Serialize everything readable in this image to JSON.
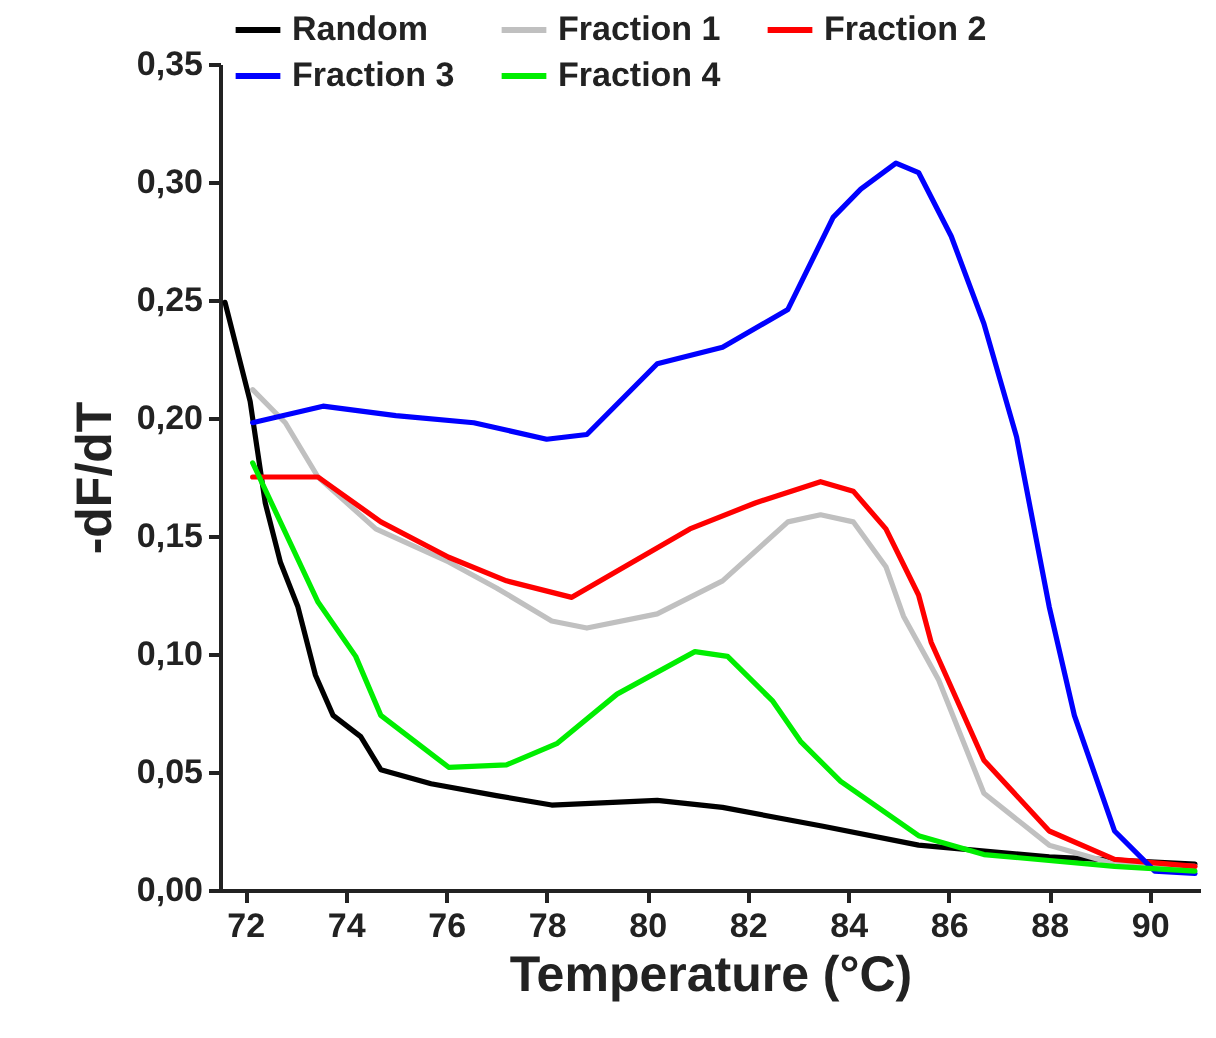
{
  "chart_data": {
    "type": "line",
    "xlabel": "Temperature (°C)",
    "ylabel": "-dF/dT",
    "xlim": [
      71.5,
      91
    ],
    "ylim": [
      0,
      0.35
    ],
    "xticks": [
      72,
      74,
      76,
      78,
      80,
      82,
      84,
      86,
      88,
      90
    ],
    "yticks": [
      {
        "value": 0,
        "label": "0,00"
      },
      {
        "value": 0.05,
        "label": "0,05"
      },
      {
        "value": 0.1,
        "label": "0,10"
      },
      {
        "value": 0.15,
        "label": "0,15"
      },
      {
        "value": 0.2,
        "label": "0,20"
      },
      {
        "value": 0.25,
        "label": "0,25"
      },
      {
        "value": 0.3,
        "label": "0,30"
      },
      {
        "value": 0.35,
        "label": "0,35"
      }
    ],
    "grid": false,
    "legend": "top left",
    "line_style": "solid",
    "series": [
      {
        "name": "Random",
        "color": "#000000",
        "x": [
          71.6,
          72.1,
          72.4,
          72.7,
          73.05,
          73.4,
          73.75,
          74.3,
          74.7,
          75.7,
          77,
          78.1,
          80.2,
          81.5,
          83.5,
          85.4,
          88,
          90.9
        ],
        "values": [
          0.249,
          0.207,
          0.164,
          0.139,
          0.12,
          0.091,
          0.074,
          0.065,
          0.051,
          0.045,
          0.04,
          0.036,
          0.038,
          0.035,
          0.027,
          0.019,
          0.014,
          0.011
        ]
      },
      {
        "name": "Fraction 1",
        "color": "#c0c0c0",
        "x": [
          72.15,
          72.8,
          73.45,
          74.6,
          76.05,
          77,
          78.1,
          78.8,
          80.2,
          81.5,
          82.8,
          83.45,
          84.1,
          84.75,
          85.1,
          85.8,
          86.7,
          88,
          89.3,
          90.9
        ],
        "values": [
          0.212,
          0.198,
          0.175,
          0.153,
          0.139,
          0.128,
          0.114,
          0.111,
          0.117,
          0.131,
          0.156,
          0.159,
          0.156,
          0.137,
          0.116,
          0.089,
          0.041,
          0.019,
          0.011,
          0.01
        ]
      },
      {
        "name": "Fraction 2",
        "color": "#ff0000",
        "x": [
          72.15,
          73.45,
          74.7,
          76.05,
          77.2,
          78.5,
          79.55,
          80.85,
          82.15,
          83.45,
          84.1,
          84.75,
          85.4,
          85.65,
          86.7,
          88,
          89.3,
          90.9
        ],
        "values": [
          0.175,
          0.175,
          0.156,
          0.141,
          0.131,
          0.124,
          0.137,
          0.153,
          0.164,
          0.173,
          0.169,
          0.153,
          0.125,
          0.105,
          0.055,
          0.025,
          0.013,
          0.01
        ]
      },
      {
        "name": "Fraction 3",
        "color": "#0000ff",
        "x": [
          72.15,
          73.55,
          75,
          76.55,
          78,
          78.8,
          80.2,
          81.5,
          82.8,
          83.7,
          84.25,
          84.95,
          85.4,
          86.05,
          86.7,
          87.35,
          88,
          88.5,
          89.3,
          90.1,
          90.9
        ],
        "values": [
          0.198,
          0.205,
          0.201,
          0.198,
          0.191,
          0.193,
          0.223,
          0.23,
          0.246,
          0.285,
          0.297,
          0.308,
          0.304,
          0.277,
          0.24,
          0.192,
          0.12,
          0.074,
          0.025,
          0.008,
          0.007
        ]
      },
      {
        "name": "Fraction 4",
        "color": "#00ee00",
        "x": [
          72.15,
          73.45,
          74.2,
          74.7,
          76.05,
          77.2,
          78.2,
          79.4,
          80.95,
          81.6,
          82.5,
          83.05,
          83.85,
          85.4,
          86.7,
          89.3,
          90.9
        ],
        "values": [
          0.181,
          0.122,
          0.099,
          0.074,
          0.052,
          0.053,
          0.062,
          0.083,
          0.101,
          0.099,
          0.08,
          0.063,
          0.046,
          0.023,
          0.015,
          0.01,
          0.008
        ]
      }
    ]
  }
}
